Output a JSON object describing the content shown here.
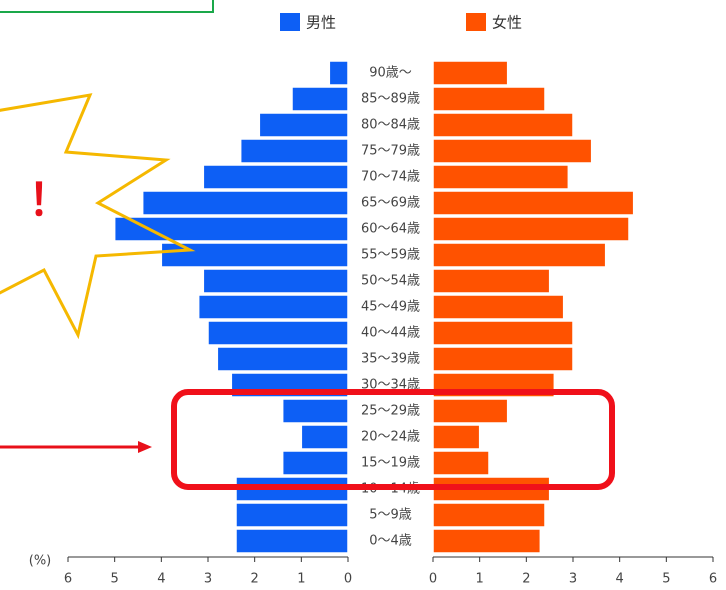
{
  "chart_data": {
    "type": "pyramid",
    "categories": [
      "90歳～",
      "85～89歳",
      "80～84歳",
      "75～79歳",
      "70～74歳",
      "65～69歳",
      "60～64歳",
      "55～59歳",
      "50～54歳",
      "45～49歳",
      "40～44歳",
      "35～39歳",
      "30～34歳",
      "25～29歳",
      "20～24歳",
      "15～19歳",
      "10～14歳",
      "5～9歳",
      "0～4歳"
    ],
    "series": [
      {
        "name": "男性",
        "color": "#0d5ff5",
        "values": [
          0.4,
          1.2,
          1.9,
          2.3,
          3.1,
          4.4,
          5.0,
          4.0,
          3.1,
          3.2,
          3.0,
          2.8,
          2.5,
          1.4,
          1.0,
          1.4,
          2.4,
          2.4,
          2.4
        ]
      },
      {
        "name": "女性",
        "color": "#ff5200",
        "values": [
          1.6,
          2.4,
          3.0,
          3.4,
          2.9,
          4.3,
          4.2,
          3.7,
          2.5,
          2.8,
          3.0,
          3.0,
          2.6,
          1.6,
          1.0,
          1.2,
          2.5,
          2.4,
          2.3
        ]
      }
    ],
    "xlim": [
      0,
      6
    ],
    "xticks": [
      0,
      1,
      2,
      3,
      4,
      5,
      6
    ],
    "x_label": "(%)",
    "annotation": "！"
  }
}
